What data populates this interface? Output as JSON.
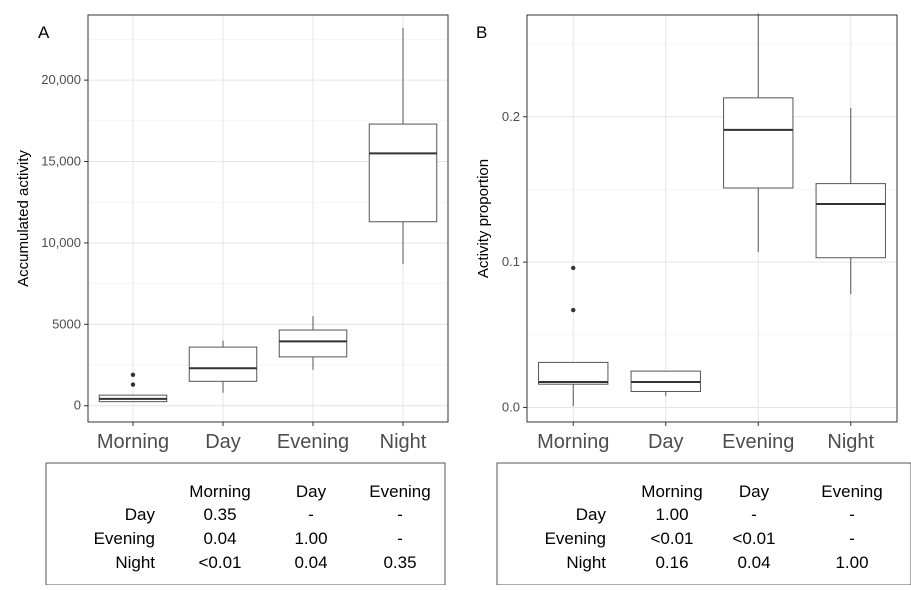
{
  "chart_data": [
    {
      "type": "box",
      "panel": "A",
      "ylabel": "Accumulated activity",
      "ylim": [
        -1000,
        24000
      ],
      "yticks": [
        0,
        5000,
        10000,
        15000,
        20000
      ],
      "ytick_labels": [
        "0",
        "5000",
        "10,000",
        "15,000",
        "20,000"
      ],
      "categories": [
        "Morning",
        "Day",
        "Evening",
        "Night"
      ],
      "boxes": [
        {
          "min": 250,
          "q1": 250,
          "median": 420,
          "q3": 650,
          "max": 650,
          "outliers": [
            1300,
            1900
          ]
        },
        {
          "min": 800,
          "q1": 1500,
          "median": 2300,
          "q3": 3600,
          "max": 4000,
          "outliers": []
        },
        {
          "min": 2200,
          "q1": 3000,
          "median": 3950,
          "q3": 4650,
          "max": 5500,
          "outliers": []
        },
        {
          "min": 8700,
          "q1": 11300,
          "median": 15500,
          "q3": 17300,
          "max": 23200,
          "outliers": []
        }
      ],
      "grid": true,
      "table": {
        "header": [
          "",
          "Morning",
          "Day",
          "Evening"
        ],
        "rows": [
          [
            "Day",
            "0.35",
            "-",
            "-"
          ],
          [
            "Evening",
            "0.04",
            "1.00",
            "-"
          ],
          [
            "Night",
            "<0.01",
            "0.04",
            "0.35"
          ]
        ]
      }
    },
    {
      "type": "box",
      "panel": "B",
      "ylabel": "Activity proportion",
      "ylim": [
        -0.01,
        0.27
      ],
      "yticks": [
        0.0,
        0.1,
        0.2
      ],
      "ytick_labels": [
        "0.0",
        "0.1",
        "0.2"
      ],
      "categories": [
        "Morning",
        "Day",
        "Evening",
        "Night"
      ],
      "boxes": [
        {
          "min": 0.001,
          "q1": 0.016,
          "median": 0.0175,
          "q3": 0.031,
          "max": 0.031,
          "outliers": [
            0.067,
            0.096
          ]
        },
        {
          "min": 0.008,
          "q1": 0.011,
          "median": 0.0175,
          "q3": 0.025,
          "max": 0.025,
          "outliers": []
        },
        {
          "min": 0.107,
          "q1": 0.151,
          "median": 0.191,
          "q3": 0.213,
          "max": 0.271,
          "outliers": []
        },
        {
          "min": 0.078,
          "q1": 0.103,
          "median": 0.14,
          "q3": 0.154,
          "max": 0.206,
          "outliers": []
        }
      ],
      "grid": true,
      "table": {
        "header": [
          "",
          "Morning",
          "Day",
          "Evening"
        ],
        "rows": [
          [
            "Day",
            "1.00",
            "-",
            "-"
          ],
          [
            "Evening",
            "<0.01",
            "<0.01",
            "-"
          ],
          [
            "Night",
            "0.16",
            "0.04",
            "1.00"
          ]
        ]
      }
    }
  ]
}
